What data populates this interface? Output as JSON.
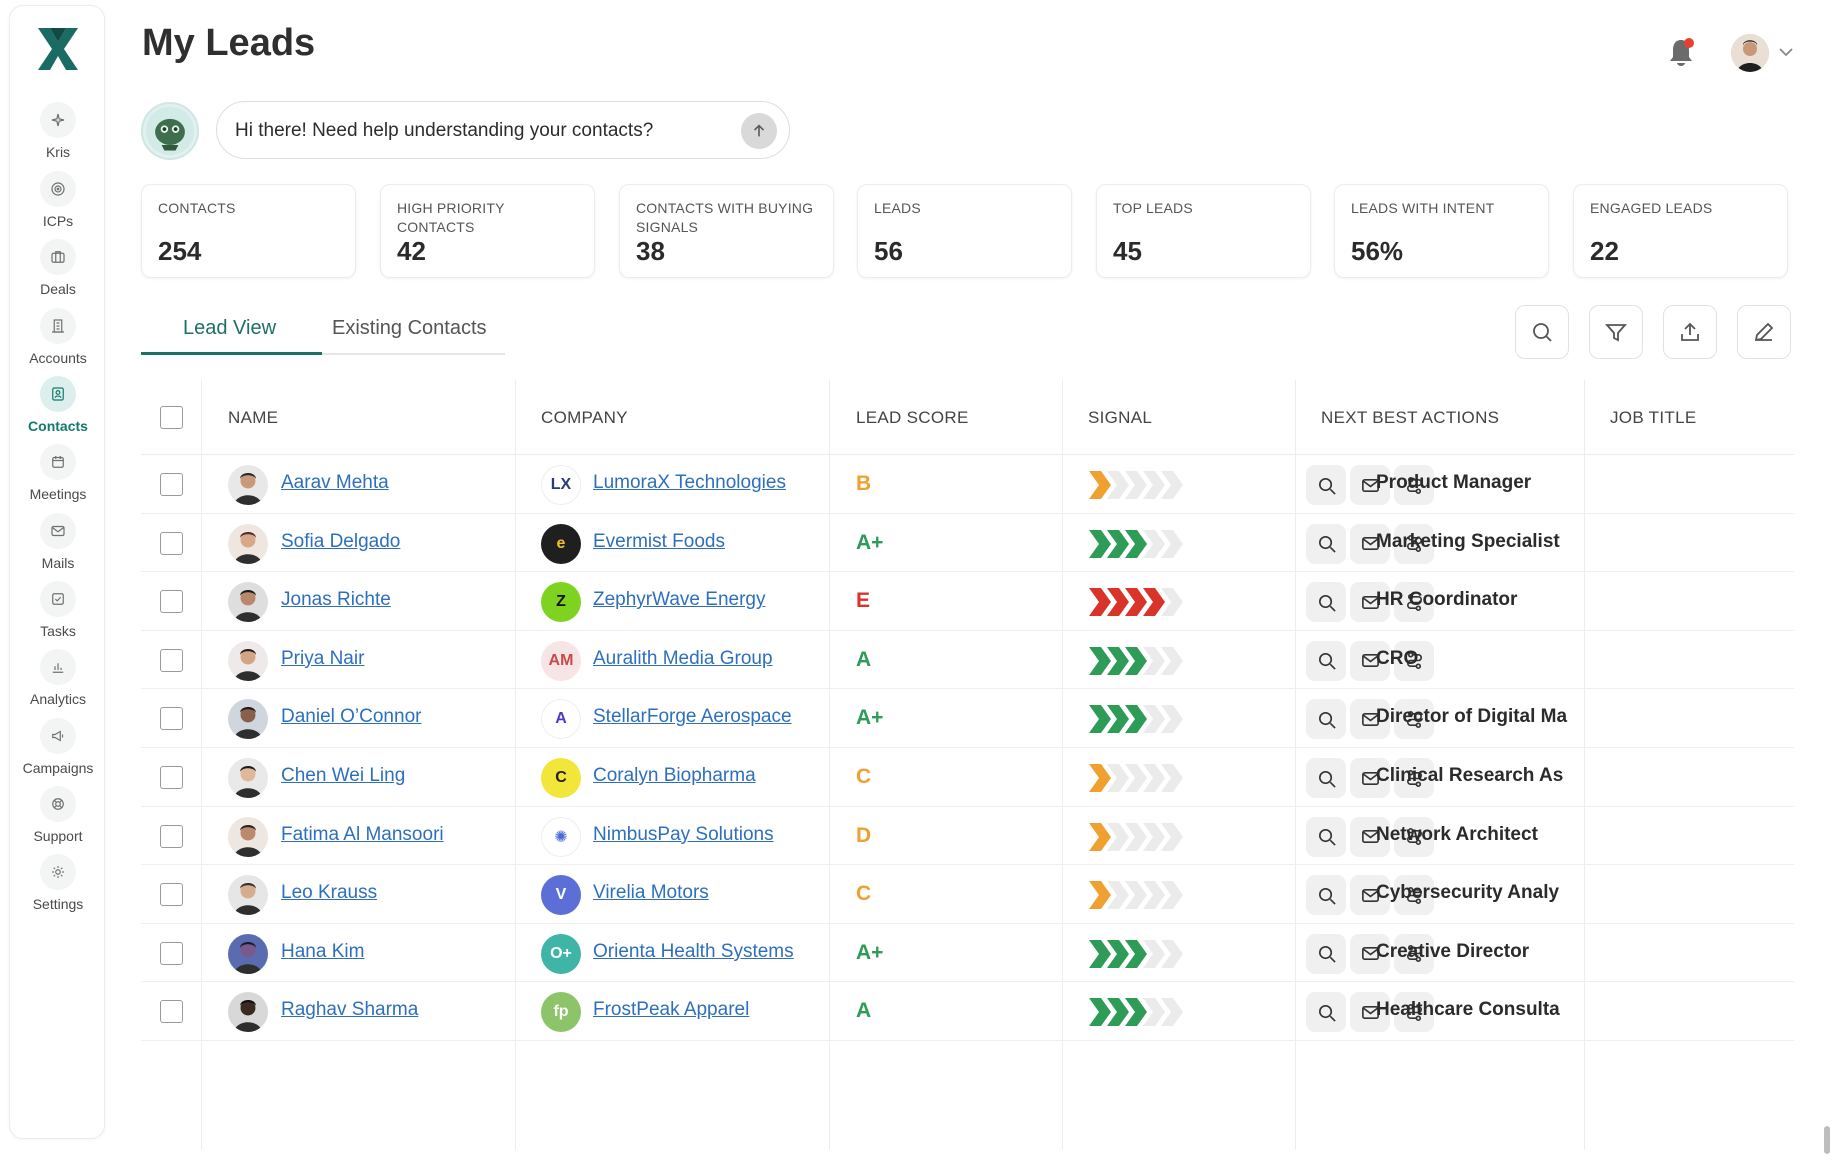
{
  "app": {
    "page_title": "My Leads"
  },
  "nav": [
    {
      "label": "Kris",
      "icon": "sparkle-icon"
    },
    {
      "label": "ICPs",
      "icon": "target-icon"
    },
    {
      "label": "Deals",
      "icon": "briefcase-icon"
    },
    {
      "label": "Accounts",
      "icon": "building-icon"
    },
    {
      "label": "Contacts",
      "icon": "contact-card-icon",
      "active": true
    },
    {
      "label": "Meetings",
      "icon": "calendar-icon"
    },
    {
      "label": "Mails",
      "icon": "mail-icon"
    },
    {
      "label": "Tasks",
      "icon": "checkbox-icon"
    },
    {
      "label": "Analytics",
      "icon": "bar-chart-icon"
    },
    {
      "label": "Campaigns",
      "icon": "megaphone-icon"
    },
    {
      "label": "Support",
      "icon": "lifebuoy-icon"
    },
    {
      "label": "Settings",
      "icon": "gear-icon"
    }
  ],
  "chat": {
    "placeholder": "Hi there! Need help understanding your contacts?"
  },
  "stats": [
    {
      "label": "CONTACTS",
      "value": "254"
    },
    {
      "label": "HIGH PRIORITY CONTACTS",
      "value": "42"
    },
    {
      "label": "CONTACTS WITH BUYING SIGNALS",
      "value": "38"
    },
    {
      "label": "LEADS",
      "value": "56"
    },
    {
      "label": "TOP LEADS",
      "value": "45"
    },
    {
      "label": "LEADS WITH INTENT",
      "value": "56%"
    },
    {
      "label": "ENGAGED LEADS",
      "value": "22"
    }
  ],
  "tabs": {
    "active": "Lead View",
    "inactive": "Existing Contacts"
  },
  "table": {
    "headers": {
      "name": "NAME",
      "company": "COMPANY",
      "score": "LEAD SCORE",
      "signal": "SIGNAL",
      "actions": "NEXT BEST ACTIONS",
      "job": "JOB TITLE"
    },
    "rows": [
      {
        "name": "Aarav Mehta",
        "company": "LumoraX Technologies",
        "logo": "LX",
        "score": "B",
        "signal_level": 1,
        "job": "Product Manager"
      },
      {
        "name": "Sofia Delgado",
        "company": "Evermist Foods",
        "logo": "e",
        "score": "A+",
        "signal_level": 3,
        "job": "Marketing Specialist"
      },
      {
        "name": "Jonas Richte",
        "company": "ZephyrWave Energy",
        "logo": "Z",
        "score": "E",
        "signal_level": 4,
        "job": "HR Coordinator"
      },
      {
        "name": "Priya Nair",
        "company": "Auralith Media Group",
        "logo": "AM",
        "score": "A",
        "signal_level": 3,
        "job": "CRO"
      },
      {
        "name": "Daniel O’Connor",
        "company": "StellarForge Aerospace",
        "logo": "A",
        "score": "A+",
        "signal_level": 3,
        "job": "Director of Digital Ma"
      },
      {
        "name": "Chen Wei Ling",
        "company": "Coralyn Biopharma",
        "logo": "C",
        "score": "C",
        "signal_level": 1,
        "job": "Clinical Research As"
      },
      {
        "name": "Fatima Al Mansoori",
        "company": "NimbusPay Solutions",
        "logo": "✺",
        "score": "D",
        "signal_level": 1,
        "job": "Network Architect"
      },
      {
        "name": "Leo Krauss",
        "company": "Virelia Motors",
        "logo": "V",
        "score": "C",
        "signal_level": 1,
        "job": "Cybersecurity Analy"
      },
      {
        "name": "Hana Kim",
        "company": "Orienta Health Systems",
        "logo": "O+",
        "score": "A+",
        "signal_level": 3,
        "job": "Creative Director"
      },
      {
        "name": "Raghav Sharma",
        "company": "FrostPeak Apparel",
        "logo": "fp",
        "score": "A",
        "signal_level": 3,
        "job": "Healthcare Consulta"
      }
    ]
  },
  "colors": {
    "accent": "#1e6f66",
    "link": "#2e6fbd",
    "score_green": "#2e9b57",
    "score_orange": "#f0a030",
    "score_red": "#d8342a"
  }
}
